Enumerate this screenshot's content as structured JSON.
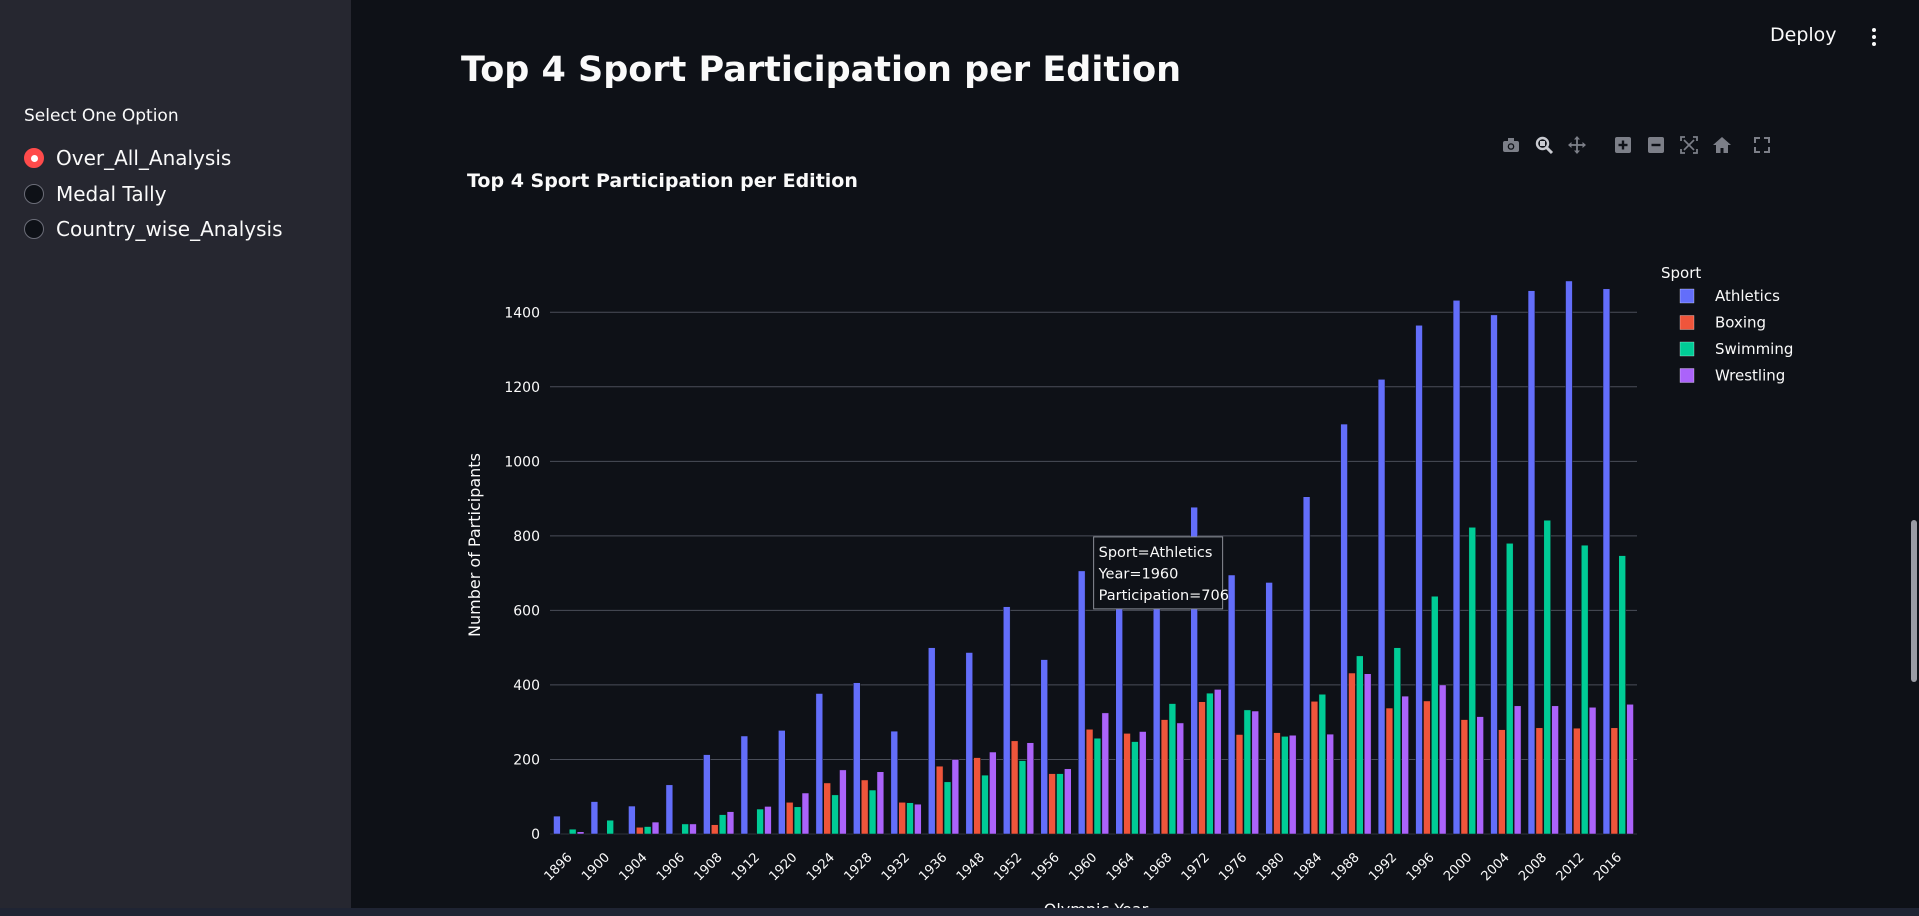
{
  "sidebar": {
    "heading": "Select One Option",
    "options": [
      {
        "label": "Over_All_Analysis",
        "selected": true
      },
      {
        "label": "Medal Tally",
        "selected": false
      },
      {
        "label": "Country_wise_Analysis",
        "selected": false
      }
    ]
  },
  "header": {
    "deploy_label": "Deploy",
    "menu_icon": "kebab-menu-icon"
  },
  "page": {
    "title": "Top 4 Sport Participation per Edition"
  },
  "modebar": {
    "icons": [
      "camera-icon",
      "zoom-icon",
      "pan-icon",
      "zoom-in-icon",
      "zoom-out-icon",
      "autoscale-icon",
      "reset-axes-icon",
      "fullscreen-icon"
    ]
  },
  "colors": {
    "accent": "#ff4b4b",
    "Athletics": "#636efa",
    "Boxing": "#ef553b",
    "Swimming": "#00cc96",
    "Wrestling": "#ab63fa"
  },
  "chart_data": {
    "type": "bar",
    "title": "Top 4 Sport Participation per Edition",
    "xlabel": "Olympic Year",
    "ylabel": "Number of Participants",
    "legend_title": "Sport",
    "legend_position": "top-right",
    "grid": true,
    "ylim": [
      0,
      1500
    ],
    "yticks": [
      0,
      200,
      400,
      600,
      800,
      1000,
      1200,
      1400
    ],
    "categories": [
      "1896",
      "1900",
      "1904",
      "1906",
      "1908",
      "1912",
      "1920",
      "1924",
      "1928",
      "1932",
      "1936",
      "1948",
      "1952",
      "1956",
      "1960",
      "1964",
      "1968",
      "1972",
      "1976",
      "1980",
      "1984",
      "1988",
      "1992",
      "1996",
      "2000",
      "2004",
      "2008",
      "2012",
      "2016"
    ],
    "series": [
      {
        "name": "Athletics",
        "values": [
          48,
          87,
          75,
          132,
          213,
          263,
          278,
          377,
          406,
          276,
          500,
          487,
          610,
          468,
          706,
          610,
          615,
          877,
          695,
          675,
          905,
          1100,
          1220,
          1365,
          1432,
          1393,
          1458,
          1484,
          1463
        ]
      },
      {
        "name": "Boxing",
        "values": [
          0,
          0,
          18,
          0,
          25,
          0,
          85,
          137,
          145,
          85,
          182,
          205,
          250,
          162,
          281,
          270,
          307,
          355,
          267,
          272,
          356,
          432,
          338,
          357,
          307,
          280,
          285,
          284,
          285
        ]
      },
      {
        "name": "Swimming",
        "values": [
          13,
          37,
          20,
          27,
          52,
          67,
          73,
          105,
          118,
          84,
          140,
          158,
          197,
          162,
          257,
          248,
          350,
          378,
          333,
          262,
          375,
          478,
          500,
          638,
          823,
          780,
          842,
          775,
          747
        ]
      },
      {
        "name": "Wrestling",
        "values": [
          6,
          0,
          32,
          27,
          60,
          74,
          110,
          172,
          167,
          80,
          200,
          220,
          245,
          175,
          325,
          275,
          298,
          388,
          330,
          265,
          268,
          430,
          370,
          400,
          315,
          344,
          344,
          340,
          348
        ]
      }
    ],
    "tooltip": {
      "lines": [
        "Sport=Athletics",
        "Year=1960",
        "Participation=706"
      ],
      "series": "Athletics",
      "category": "1960"
    }
  }
}
